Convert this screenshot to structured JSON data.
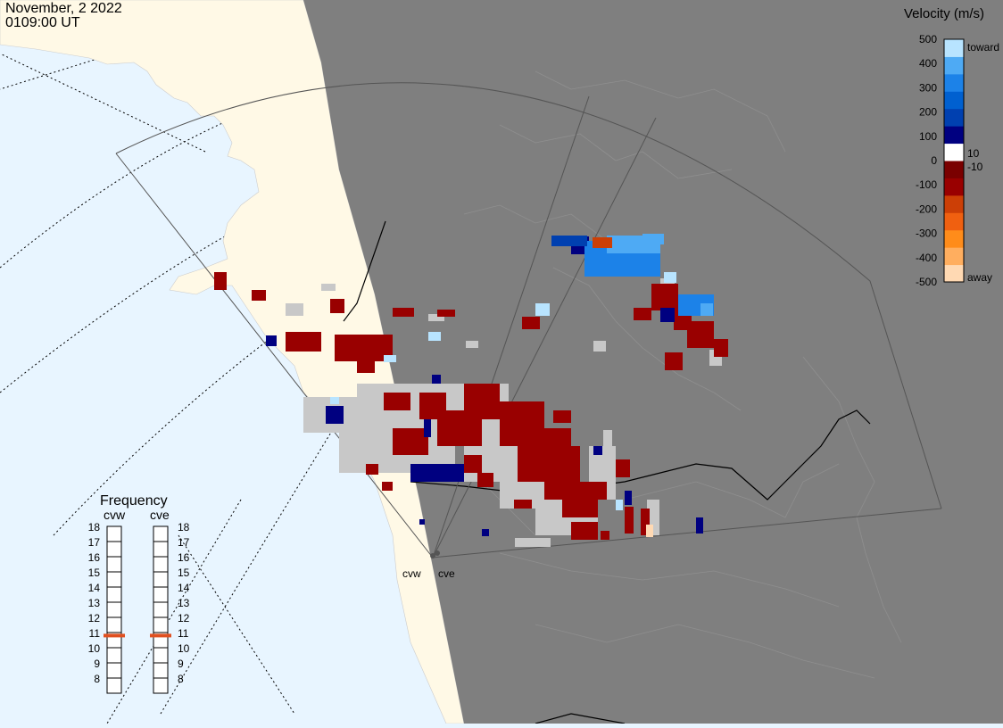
{
  "header": {
    "date": "November, 2 2022",
    "time": "0109:00 UT"
  },
  "colorbar": {
    "title": "Velocity (m/s)",
    "ticks": [
      "500",
      "400",
      "300",
      "200",
      "100",
      "0",
      "-100",
      "-200",
      "-300",
      "-400",
      "-500"
    ],
    "toward_label": "toward",
    "away_label": "away",
    "cut_pos_label": "10",
    "cut_neg_label": "-10",
    "colors": [
      "#ffd9b3",
      "#ffae5f",
      "#ff8c1a",
      "#f06010",
      "#cc3f06",
      "#990000",
      "#7a0000",
      "#ffffff",
      "#000080",
      "#0040b0",
      "#0060d0",
      "#1c82e8",
      "#4eaaf4",
      "#b8e4ff"
    ]
  },
  "colors": {
    "ocean": "#e8f5ff",
    "land_visible": "#fff9e6",
    "night_mask": "#7f7f7f",
    "ground_scatter": "#c8c8c8",
    "frequency_marker": "#e05020"
  },
  "frequency": {
    "title": "Frequency",
    "radars": [
      {
        "name": "cvw",
        "selected_mhz": 10.8
      },
      {
        "name": "cve",
        "selected_mhz": 10.8
      }
    ],
    "levels": [
      "18",
      "17",
      "16",
      "15",
      "14",
      "13",
      "12",
      "11",
      "10",
      "9",
      "8"
    ]
  },
  "radars": [
    {
      "label": "cvw"
    },
    {
      "label": "cve"
    }
  ]
}
